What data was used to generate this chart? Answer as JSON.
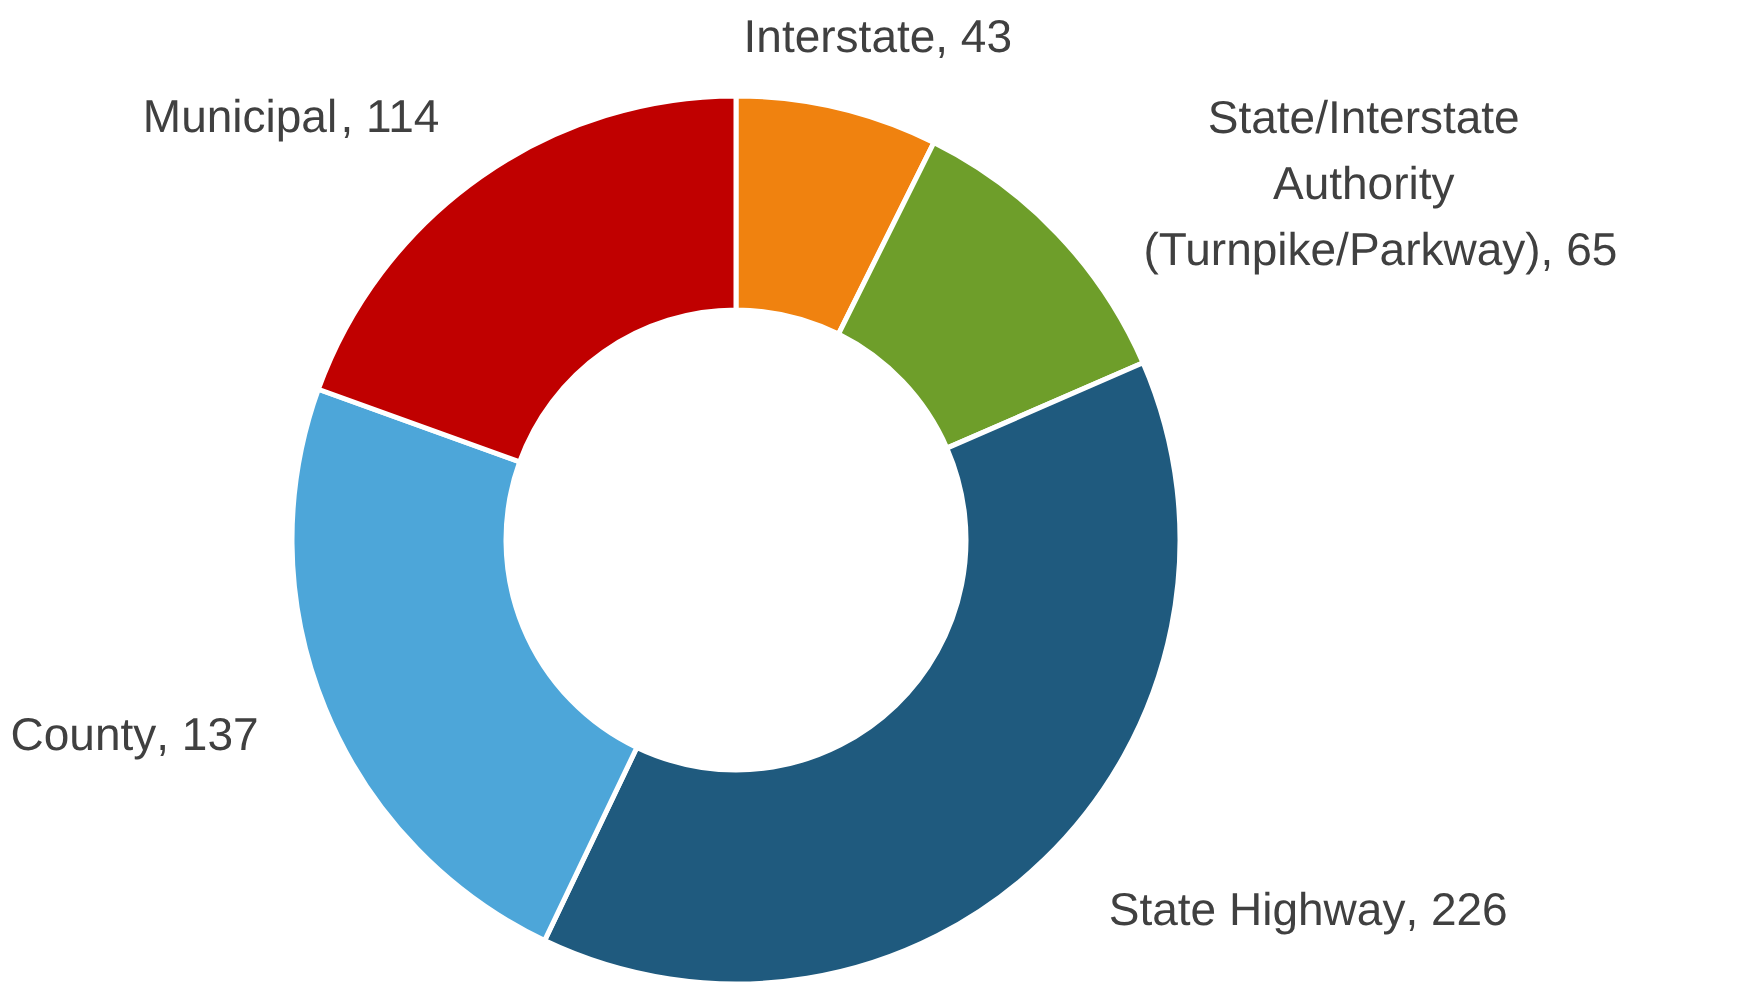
{
  "chart_data": {
    "type": "donut",
    "categories": [
      "Interstate",
      "State/Interstate Authority (Turnpike/Parkway)",
      "State Highway",
      "County",
      "Municipal"
    ],
    "values": [
      43,
      65,
      226,
      137,
      114
    ],
    "colors": [
      "#f0820f",
      "#6e9e2a",
      "#1f5a7e",
      "#4da6d9",
      "#c00000"
    ],
    "value_labels": [
      ", 43",
      ", 65",
      ", 226",
      ", 137",
      ", 114"
    ]
  }
}
